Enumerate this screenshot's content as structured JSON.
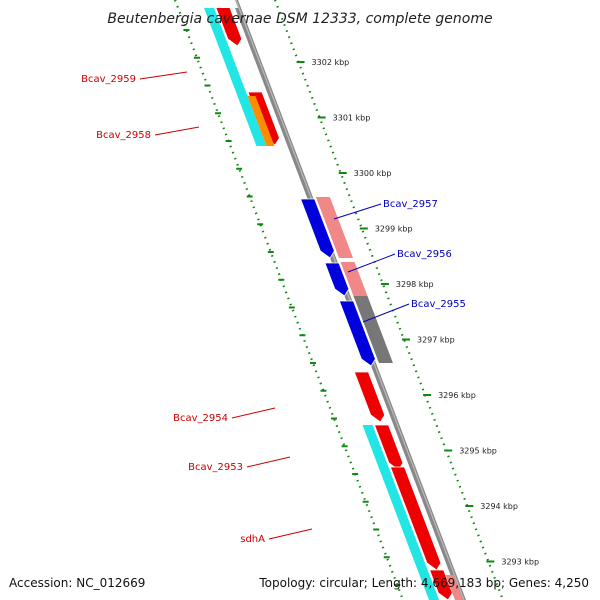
{
  "title": "Beutenbergia cavernae DSM 12333, complete genome",
  "footer": {
    "accession": "Accession: NC_012669",
    "topology": "Topology: circular; Length: 4,669,183 bp; Genes: 4,250"
  },
  "colors": {
    "forward_cds": "#ee0000",
    "reverse_cds": "#0000dd",
    "forward_light": "#f08888",
    "reverse_light": "#777777",
    "cyan_track": "#22e6e6",
    "orange_track": "#ff8c00",
    "backbone": "#888888",
    "tick": "#118811",
    "label_forward": "#cc0000",
    "label_reverse": "#0000bb"
  },
  "ticks": [
    {
      "label": "3302 kbp"
    },
    {
      "label": "3301 kbp"
    },
    {
      "label": "3300 kbp"
    },
    {
      "label": "3299 kbp"
    },
    {
      "label": "3298 kbp"
    },
    {
      "label": "3297 kbp"
    },
    {
      "label": "3296 kbp"
    },
    {
      "label": "3295 kbp"
    },
    {
      "label": "3294 kbp"
    },
    {
      "label": "3293 kbp"
    }
  ],
  "gene_labels": [
    {
      "name": "Bcav_2959",
      "strand": "forward"
    },
    {
      "name": "Bcav_2958",
      "strand": "forward"
    },
    {
      "name": "Bcav_2957",
      "strand": "reverse"
    },
    {
      "name": "Bcav_2956",
      "strand": "reverse"
    },
    {
      "name": "Bcav_2955",
      "strand": "reverse"
    },
    {
      "name": "Bcav_2954",
      "strand": "forward"
    },
    {
      "name": "Bcav_2953",
      "strand": "forward"
    },
    {
      "name": "sdhA",
      "strand": "forward"
    }
  ]
}
